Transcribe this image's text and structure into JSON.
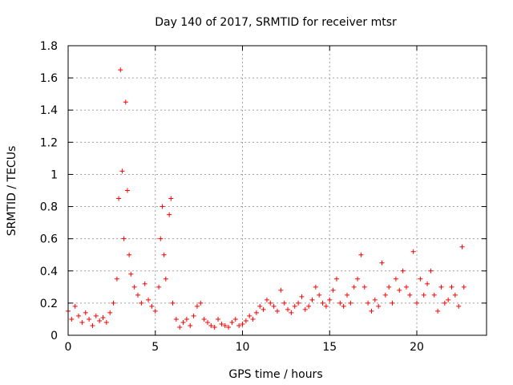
{
  "chart_data": {
    "type": "scatter",
    "title": "Day 140 of 2017, SRMTID for receiver mtsr",
    "xlabel": "GPS time / hours",
    "ylabel": "SRMTID / TECUs",
    "xlim": [
      0,
      24
    ],
    "ylim": [
      0,
      1.8
    ],
    "xticks": [
      0,
      5,
      10,
      15,
      20
    ],
    "xtick_labels": [
      "0",
      "5",
      "10",
      "15",
      "20"
    ],
    "yticks": [
      0,
      0.2,
      0.4,
      0.6,
      0.8,
      1,
      1.2,
      1.4,
      1.6,
      1.8
    ],
    "ytick_labels": [
      "0",
      "0.2",
      "0.4",
      "0.6",
      "0.8",
      "1",
      "1.2",
      "1.4",
      "1.6",
      "1.8"
    ],
    "grid": true,
    "marker": "plus",
    "color": "#ff0000",
    "series": [
      {
        "name": "SRMTID",
        "x": [
          0.0,
          0.2,
          0.4,
          0.6,
          0.8,
          1.0,
          1.2,
          1.4,
          1.6,
          1.8,
          2.0,
          2.2,
          2.4,
          2.6,
          2.8,
          2.9,
          3.0,
          3.1,
          3.2,
          3.3,
          3.4,
          3.5,
          3.6,
          3.8,
          4.0,
          4.2,
          4.4,
          4.6,
          4.8,
          5.0,
          5.2,
          5.3,
          5.4,
          5.5,
          5.6,
          5.8,
          5.9,
          6.0,
          6.2,
          6.4,
          6.6,
          6.8,
          7.0,
          7.2,
          7.4,
          7.6,
          7.8,
          8.0,
          8.2,
          8.4,
          8.6,
          8.8,
          9.0,
          9.2,
          9.4,
          9.6,
          9.8,
          10.0,
          10.2,
          10.4,
          10.6,
          10.8,
          11.0,
          11.2,
          11.4,
          11.6,
          11.8,
          12.0,
          12.2,
          12.4,
          12.6,
          12.8,
          13.0,
          13.2,
          13.4,
          13.6,
          13.8,
          14.0,
          14.2,
          14.4,
          14.6,
          14.8,
          15.0,
          15.2,
          15.4,
          15.6,
          15.8,
          16.0,
          16.2,
          16.4,
          16.6,
          16.8,
          17.0,
          17.2,
          17.4,
          17.6,
          17.8,
          18.0,
          18.2,
          18.4,
          18.6,
          18.8,
          19.0,
          19.2,
          19.4,
          19.6,
          19.8,
          20.0,
          20.2,
          20.4,
          20.6,
          20.8,
          21.0,
          21.2,
          21.4,
          21.6,
          21.8,
          22.0,
          22.2,
          22.4,
          22.6,
          22.7
        ],
        "y": [
          0.15,
          0.1,
          0.18,
          0.12,
          0.08,
          0.14,
          0.1,
          0.06,
          0.12,
          0.09,
          0.11,
          0.08,
          0.14,
          0.2,
          0.35,
          0.85,
          1.65,
          1.02,
          0.6,
          1.45,
          0.9,
          0.5,
          0.38,
          0.3,
          0.25,
          0.2,
          0.32,
          0.22,
          0.18,
          0.15,
          0.3,
          0.6,
          0.8,
          0.5,
          0.35,
          0.75,
          0.85,
          0.2,
          0.1,
          0.05,
          0.08,
          0.1,
          0.06,
          0.12,
          0.18,
          0.2,
          0.1,
          0.08,
          0.06,
          0.05,
          0.1,
          0.07,
          0.06,
          0.05,
          0.08,
          0.1,
          0.06,
          0.07,
          0.09,
          0.12,
          0.1,
          0.14,
          0.18,
          0.16,
          0.22,
          0.2,
          0.18,
          0.15,
          0.28,
          0.2,
          0.16,
          0.14,
          0.18,
          0.2,
          0.24,
          0.16,
          0.18,
          0.22,
          0.3,
          0.25,
          0.2,
          0.18,
          0.22,
          0.28,
          0.35,
          0.2,
          0.18,
          0.25,
          0.2,
          0.3,
          0.35,
          0.5,
          0.3,
          0.2,
          0.15,
          0.22,
          0.18,
          0.45,
          0.25,
          0.3,
          0.2,
          0.35,
          0.28,
          0.4,
          0.3,
          0.25,
          0.52,
          0.2,
          0.35,
          0.25,
          0.32,
          0.4,
          0.25,
          0.15,
          0.3,
          0.2,
          0.22,
          0.3,
          0.25,
          0.18,
          0.55,
          0.3
        ]
      }
    ]
  }
}
